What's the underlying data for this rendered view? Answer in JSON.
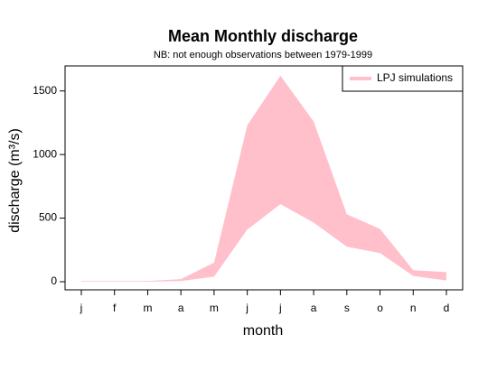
{
  "chart_data": {
    "type": "band",
    "title": "Mean Monthly discharge",
    "subtitle": "NB: not enough observations between 1979-1999",
    "xlabel": "month",
    "ylabel": "discharge (m³/s)",
    "categories": [
      "j",
      "f",
      "m",
      "a",
      "m",
      "j",
      "j",
      "a",
      "s",
      "o",
      "n",
      "d"
    ],
    "series": [
      {
        "name": "LPJ simulations",
        "color": "#ffc0cb",
        "high": [
          5,
          5,
          5,
          20,
          150,
          1230,
          1620,
          1260,
          530,
          415,
          90,
          75
        ],
        "low": [
          0,
          0,
          0,
          5,
          40,
          410,
          610,
          465,
          275,
          225,
          45,
          10
        ]
      }
    ],
    "ylim": [
      -64,
      1697
    ],
    "yticks": [
      0,
      500,
      1000,
      1500
    ],
    "legend": "topright"
  }
}
